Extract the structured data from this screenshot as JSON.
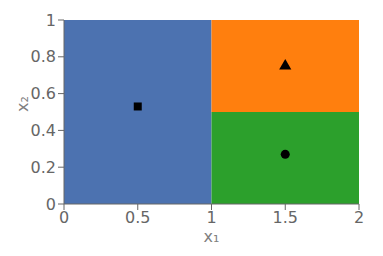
{
  "chart_data": {
    "type": "scatter",
    "xlabel": "x₁",
    "ylabel": "x₂",
    "xlim": [
      0.0,
      2.0
    ],
    "ylim": [
      0.0,
      1.0
    ],
    "xticks": [
      0,
      0.5,
      1,
      1.5,
      2
    ],
    "yticks": [
      0,
      0.2,
      0.4,
      0.6,
      0.8,
      1
    ],
    "grid": false,
    "zones": [
      {
        "x_min": 0.0,
        "x_max": 1.0,
        "y_min": 0.0,
        "y_max": 1.0,
        "color": "#4C72B0"
      },
      {
        "x_min": 1.0,
        "x_max": 2.0,
        "y_min": 0.5,
        "y_max": 1.0,
        "color": "#FF7F0E"
      },
      {
        "x_min": 1.0,
        "x_max": 2.0,
        "y_min": 0.0,
        "y_max": 0.5,
        "color": "#2CA02C"
      }
    ],
    "series": [
      {
        "x": [
          0.5
        ],
        "values": [
          0.53
        ],
        "marker": "square",
        "color": "black"
      },
      {
        "x": [
          1.5
        ],
        "values": [
          0.75
        ],
        "marker": "triangle",
        "color": "black"
      },
      {
        "x": [
          1.5
        ],
        "values": [
          0.27
        ],
        "marker": "circle",
        "color": "black"
      }
    ]
  }
}
